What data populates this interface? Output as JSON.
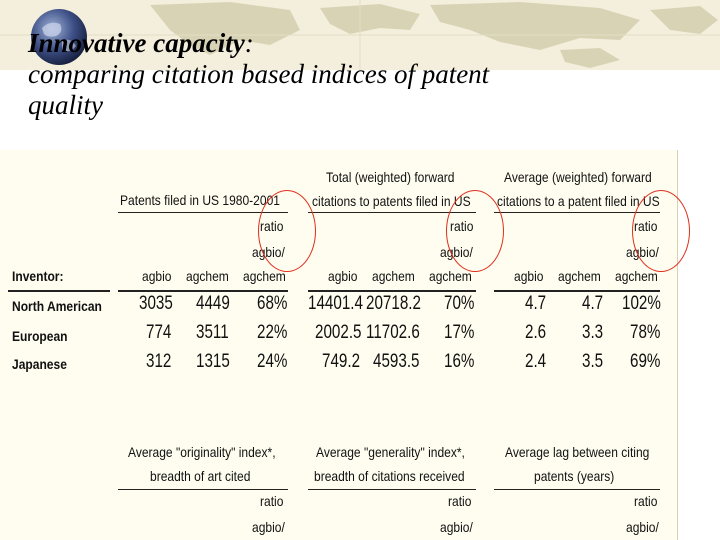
{
  "slide": {
    "title_lead": "Innovative capacity",
    "title_colon": ":",
    "title_rest_1": "comparing citation based indices of patent",
    "title_rest_2": "quality"
  },
  "colors": {
    "highlight_circle": "#e0301e",
    "panel_bg": "#fffdf0",
    "map_land": "#d9d3b6",
    "map_sea": "#f3efdc"
  },
  "table_top": {
    "group_headers": [
      "Patents filed in US 1980-2001",
      "Total (weighted) forward",
      "citations to patents filed in US",
      "Average (weighted) forward",
      "citations to a patent filed in US"
    ],
    "ratio_label": "ratio",
    "agbio_slash": "agbio/",
    "row_header": "Inventor:",
    "col_agbio": "agbio",
    "col_agchem": "agchem",
    "rows": [
      {
        "label": "North American",
        "values": [
          "3035",
          "4449",
          "68%",
          "14401.4",
          "20718.2",
          "70%",
          "4.7",
          "4.7",
          "102%"
        ]
      },
      {
        "label": "European",
        "values": [
          "774",
          "3511",
          "22%",
          "2002.5",
          "11702.6",
          "17%",
          "2.6",
          "3.3",
          "78%"
        ]
      },
      {
        "label": "Japanese",
        "values": [
          "312",
          "1315",
          "24%",
          "749.2",
          "4593.5",
          "16%",
          "2.4",
          "3.5",
          "69%"
        ]
      }
    ]
  },
  "table_bottom": {
    "group_headers": [
      "Average \"originality\" index*,",
      "breadth of art cited",
      "Average \"generality\" index*,",
      "breadth of citations received",
      "Average lag between citing",
      "patents (years)"
    ],
    "ratio_label": "ratio",
    "agbio_slash": "agbio/"
  }
}
